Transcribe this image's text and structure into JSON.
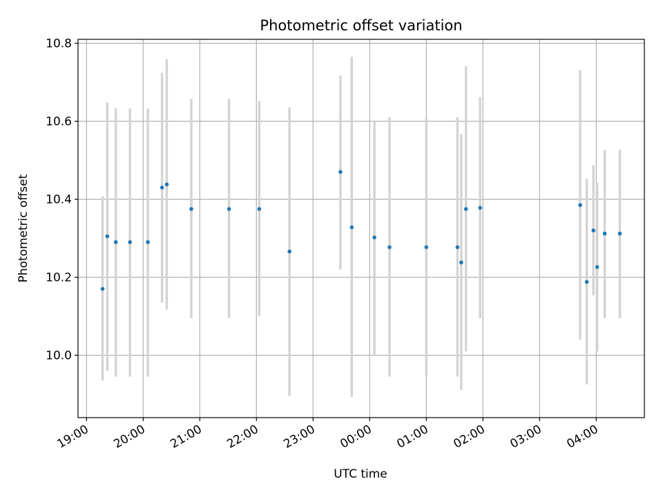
{
  "chart_data": {
    "type": "scatter",
    "title": "Photometric offset variation",
    "xlabel": "UTC time",
    "ylabel": "Photometric offset",
    "x_ticks": [
      "19:00",
      "20:00",
      "21:00",
      "22:00",
      "23:00",
      "00:00",
      "01:00",
      "02:00",
      "03:00",
      "04:00"
    ],
    "y_ticks": [
      "10.0",
      "10.2",
      "10.4",
      "10.6",
      "10.8"
    ],
    "xlim": [
      "18:51",
      "04:51"
    ],
    "ylim": [
      9.84,
      10.81
    ],
    "grid": true,
    "point_color": "#1f77b4",
    "errorbar_color": "#d3d3d3",
    "points": [
      {
        "t": "19:17",
        "y": 10.17,
        "lo": 9.935,
        "hi": 10.407
      },
      {
        "t": "19:22",
        "y": 10.305,
        "lo": 9.96,
        "hi": 10.648
      },
      {
        "t": "19:31",
        "y": 10.29,
        "lo": 9.945,
        "hi": 10.633
      },
      {
        "t": "19:46",
        "y": 10.29,
        "lo": 9.945,
        "hi": 10.633
      },
      {
        "t": "20:05",
        "y": 10.29,
        "lo": 9.945,
        "hi": 10.633
      },
      {
        "t": "20:20",
        "y": 10.43,
        "lo": 10.135,
        "hi": 10.724
      },
      {
        "t": "20:25",
        "y": 10.438,
        "lo": 10.117,
        "hi": 10.759
      },
      {
        "t": "20:51",
        "y": 10.375,
        "lo": 10.095,
        "hi": 10.657
      },
      {
        "t": "21:31",
        "y": 10.375,
        "lo": 10.095,
        "hi": 10.657
      },
      {
        "t": "22:03",
        "y": 10.375,
        "lo": 10.1,
        "hi": 10.652
      },
      {
        "t": "22:35",
        "y": 10.266,
        "lo": 9.896,
        "hi": 10.636
      },
      {
        "t": "23:29",
        "y": 10.47,
        "lo": 10.22,
        "hi": 10.717
      },
      {
        "t": "23:41",
        "y": 10.328,
        "lo": 9.893,
        "hi": 10.765
      },
      {
        "t": "00:05",
        "y": 10.302,
        "lo": 10.002,
        "hi": 10.602
      },
      {
        "t": "00:21",
        "y": 10.277,
        "lo": 9.945,
        "hi": 10.61
      },
      {
        "t": "01:00",
        "y": 10.277,
        "lo": 9.945,
        "hi": 10.61
      },
      {
        "t": "01:33",
        "y": 10.277,
        "lo": 9.945,
        "hi": 10.61
      },
      {
        "t": "01:37",
        "y": 10.238,
        "lo": 9.91,
        "hi": 10.567
      },
      {
        "t": "01:42",
        "y": 10.375,
        "lo": 10.01,
        "hi": 10.741
      },
      {
        "t": "01:57",
        "y": 10.378,
        "lo": 10.095,
        "hi": 10.662
      },
      {
        "t": "03:43",
        "y": 10.385,
        "lo": 10.04,
        "hi": 10.731
      },
      {
        "t": "03:50",
        "y": 10.188,
        "lo": 9.925,
        "hi": 10.452
      },
      {
        "t": "03:57",
        "y": 10.32,
        "lo": 10.153,
        "hi": 10.487
      },
      {
        "t": "04:01",
        "y": 10.226,
        "lo": 10.01,
        "hi": 10.442
      },
      {
        "t": "04:09",
        "y": 10.312,
        "lo": 10.095,
        "hi": 10.527
      },
      {
        "t": "04:25",
        "y": 10.312,
        "lo": 10.095,
        "hi": 10.527
      }
    ]
  }
}
